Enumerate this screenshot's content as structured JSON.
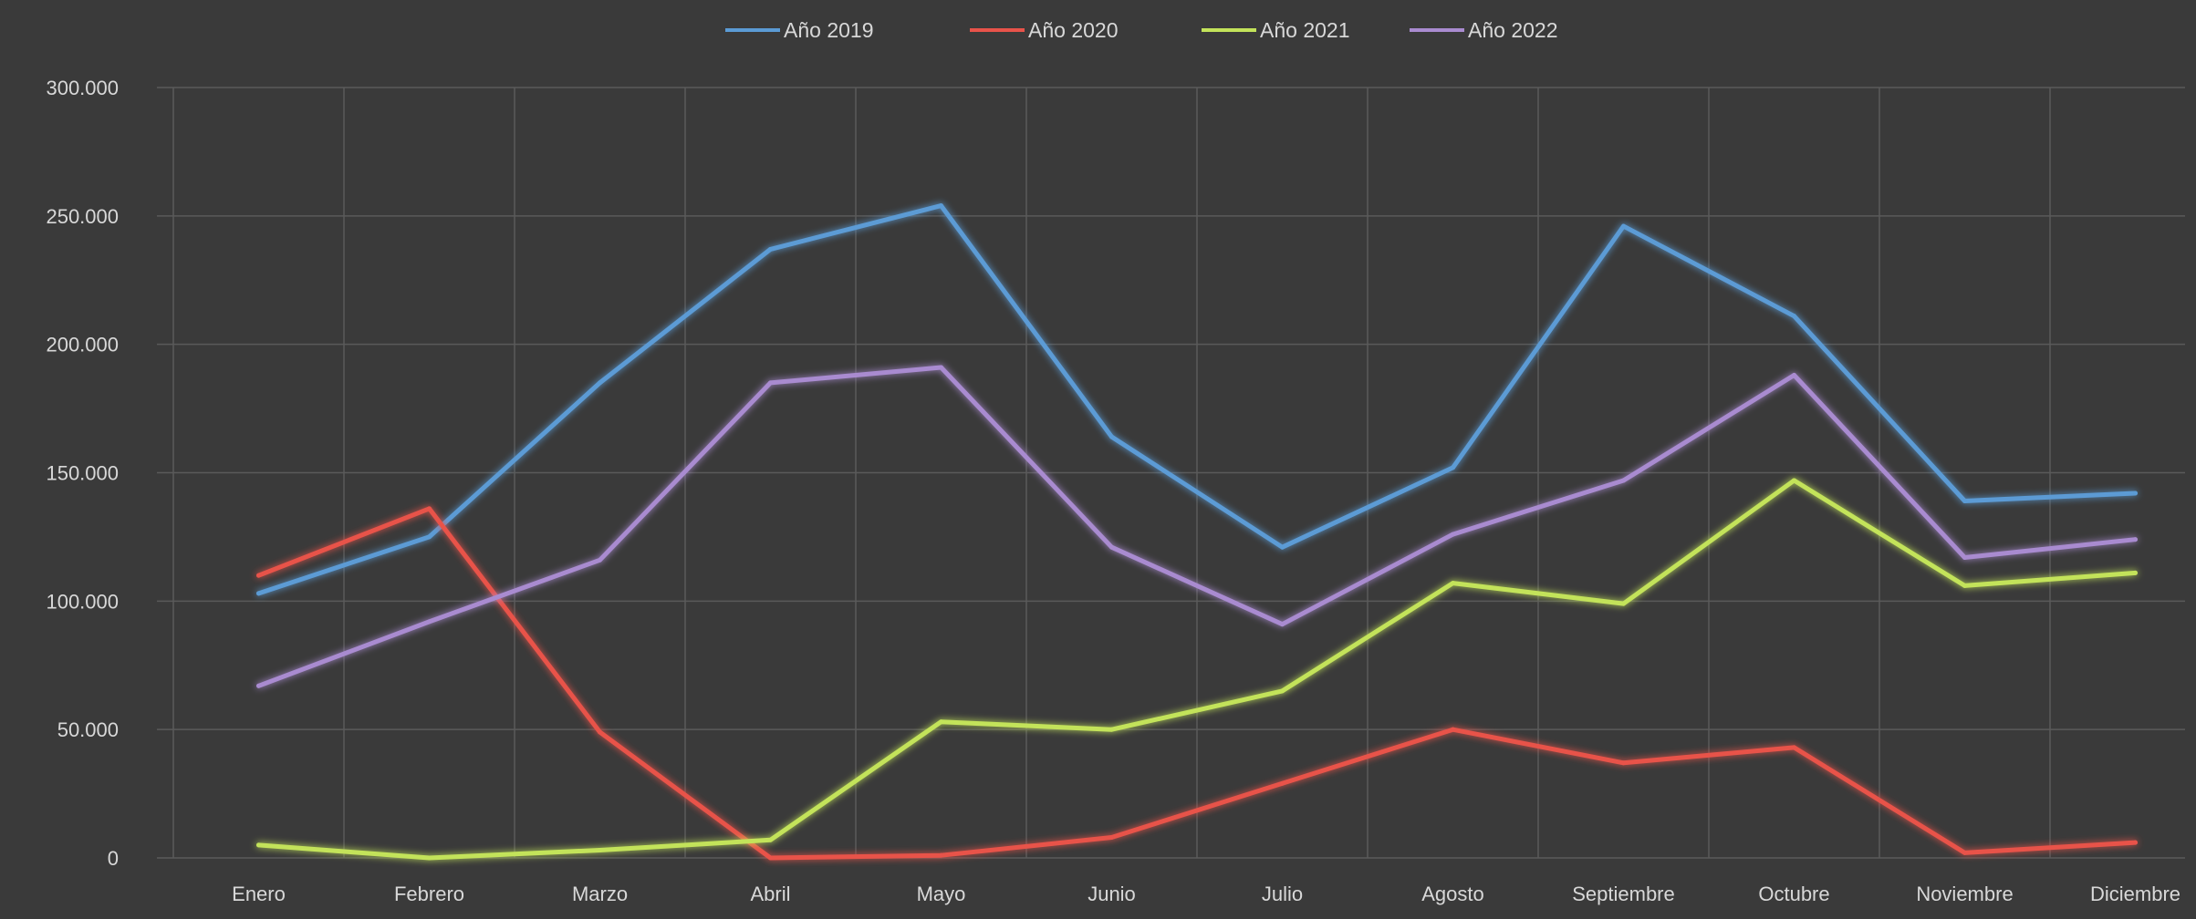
{
  "colors": {
    "background": "#3a3a3a",
    "grid": "#5a5a5a",
    "text": "#d8d8d8"
  },
  "chart_data": {
    "type": "line",
    "title": "",
    "xlabel": "",
    "ylabel": "",
    "legend_position": "top",
    "grid": true,
    "ylim": [
      0,
      300000
    ],
    "y_ticks": [
      0,
      50000,
      100000,
      150000,
      200000,
      250000,
      300000
    ],
    "y_tick_labels": [
      "0",
      "50.000",
      "100.000",
      "150.000",
      "200.000",
      "250.000",
      "300.000"
    ],
    "categories": [
      "Enero",
      "Febrero",
      "Marzo",
      "Abril",
      "Mayo",
      "Junio",
      "Julio",
      "Agosto",
      "Septiembre",
      "Octubre",
      "Noviembre",
      "Diciembre"
    ],
    "series": [
      {
        "name": "Año 2019",
        "color": "#5b9bd5",
        "values": [
          103000,
          125000,
          185000,
          237000,
          254000,
          164000,
          121000,
          152000,
          246000,
          211000,
          139000,
          142000
        ]
      },
      {
        "name": "Año 2020",
        "color": "#e8534a",
        "values": [
          110000,
          136000,
          49000,
          0,
          1000,
          8000,
          29000,
          50000,
          37000,
          43000,
          2000,
          6000
        ]
      },
      {
        "name": "Año 2021",
        "color": "#c3e35a",
        "values": [
          5000,
          0,
          3000,
          7000,
          53000,
          50000,
          65000,
          107000,
          99000,
          147000,
          106000,
          111000
        ]
      },
      {
        "name": "Año 2022",
        "color": "#a98bd0",
        "values": [
          67000,
          92000,
          116000,
          185000,
          191000,
          121000,
          91000,
          126000,
          147000,
          188000,
          117000,
          124000
        ]
      }
    ]
  }
}
